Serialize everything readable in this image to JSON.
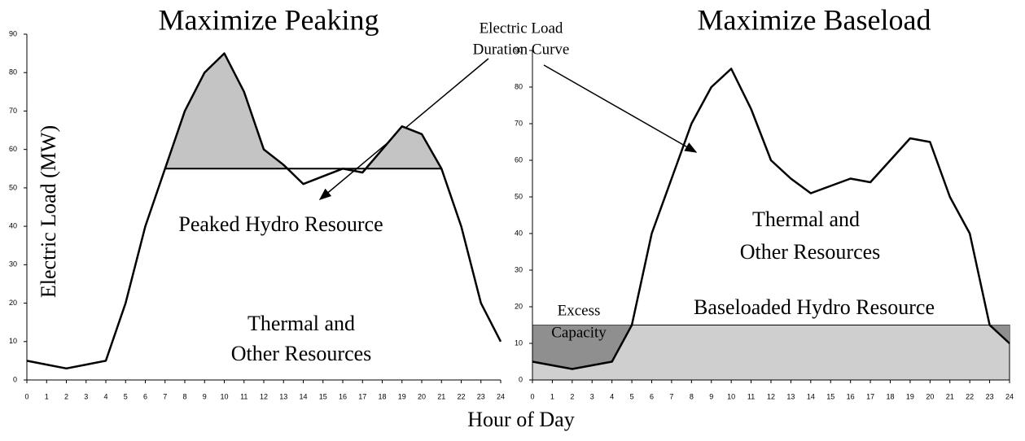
{
  "xlabel": "Hour of Day",
  "annotation": [
    "Electric Load",
    "Duration Curve"
  ],
  "chart_data": [
    {
      "type": "line",
      "title": "Maximize Peaking",
      "ylabel": "Electric Load (MW)",
      "x": [
        0,
        1,
        2,
        3,
        4,
        5,
        6,
        7,
        8,
        9,
        10,
        11,
        12,
        13,
        14,
        15,
        16,
        17,
        18,
        19,
        20,
        21,
        22,
        23,
        24
      ],
      "series": [
        {
          "color": "#000000",
          "values": [
            5,
            4,
            3,
            4,
            5,
            20,
            40,
            55,
            70,
            80,
            85,
            75,
            60,
            56,
            51,
            53,
            55,
            54,
            60,
            66,
            64,
            55,
            40,
            20,
            10
          ]
        }
      ],
      "hydro_level": 55,
      "hydro_hours": [
        7,
        21
      ],
      "hydro_color": "#c4c4c4",
      "xlim": [
        0,
        24
      ],
      "ylim": [
        0,
        90
      ],
      "xticks": [
        0,
        1,
        2,
        3,
        4,
        5,
        6,
        7,
        8,
        9,
        10,
        11,
        12,
        13,
        14,
        15,
        16,
        17,
        18,
        19,
        20,
        21,
        22,
        23,
        24
      ],
      "yticks": [
        0,
        10,
        20,
        30,
        40,
        50,
        60,
        70,
        80,
        90
      ],
      "labels": [
        [
          "Peaked Hydro Resource"
        ],
        [
          "Thermal and",
          "Other Resources"
        ]
      ]
    },
    {
      "type": "line",
      "title": "Maximize Baseload",
      "x": [
        0,
        1,
        2,
        3,
        4,
        5,
        6,
        7,
        8,
        9,
        10,
        11,
        12,
        13,
        14,
        15,
        16,
        17,
        18,
        19,
        20,
        21,
        22,
        23,
        24
      ],
      "series": [
        {
          "color": "#000000",
          "values": [
            5,
            4,
            3,
            4,
            5,
            15,
            40,
            55,
            70,
            80,
            85,
            74,
            60,
            55,
            51,
            53,
            55,
            54,
            60,
            66,
            65,
            50,
            40,
            15,
            10
          ]
        }
      ],
      "hydro_level": 15,
      "hydro_hours": [
        0,
        24
      ],
      "hydro_color": "#cfcfcf",
      "excess_color": "#8f8f8f",
      "xlim": [
        0,
        24
      ],
      "ylim": [
        0,
        90
      ],
      "xticks": [
        0,
        1,
        2,
        3,
        4,
        5,
        6,
        7,
        8,
        9,
        10,
        11,
        12,
        13,
        14,
        15,
        16,
        17,
        18,
        19,
        20,
        21,
        22,
        23,
        24
      ],
      "yticks": [
        0,
        10,
        20,
        30,
        40,
        50,
        60,
        70,
        80,
        90
      ],
      "labels": [
        [
          "Thermal and",
          "Other Resources"
        ],
        [
          "Excess",
          "Capacity"
        ],
        [
          "Baseloaded Hydro Resource"
        ]
      ]
    }
  ]
}
